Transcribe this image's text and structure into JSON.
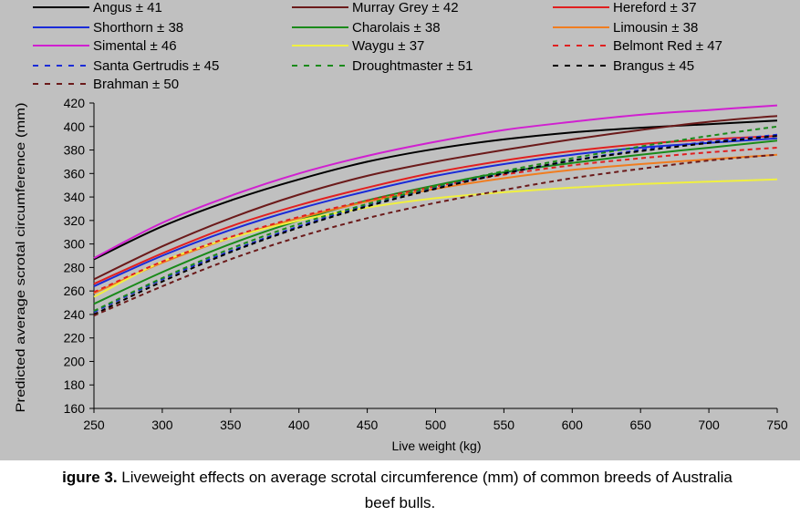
{
  "chart_data": {
    "type": "line",
    "xlabel": "Live weight (kg)",
    "ylabel": "Predicted average scrotal circumference (mm)",
    "xlim": [
      250,
      750
    ],
    "ylim": [
      160,
      420
    ],
    "x_ticks": [
      "250",
      "300",
      "350",
      "400",
      "450",
      "500",
      "550",
      "600",
      "650",
      "700",
      "750"
    ],
    "y_ticks": [
      "160",
      "180",
      "200",
      "220",
      "240",
      "260",
      "280",
      "300",
      "320",
      "340",
      "360",
      "380",
      "400",
      "420"
    ],
    "legend_position": "top",
    "x": [
      250,
      300,
      350,
      400,
      450,
      500,
      550,
      600,
      650,
      700,
      750
    ],
    "series": [
      {
        "name": "Angus ± 41",
        "color": "#000000",
        "dash": "solid",
        "values": [
          287,
          315,
          337,
          355,
          370,
          381,
          389,
          395,
          399,
          402,
          405
        ]
      },
      {
        "name": "Murray Grey ± 42",
        "color": "#6b1a1a",
        "dash": "solid",
        "values": [
          270,
          298,
          322,
          342,
          358,
          370,
          380,
          389,
          397,
          404,
          409
        ]
      },
      {
        "name": "Hereford ± 37",
        "color": "#e02020",
        "dash": "solid",
        "values": [
          266,
          292,
          315,
          333,
          348,
          361,
          371,
          379,
          385,
          389,
          392
        ]
      },
      {
        "name": "Shorthorn ± 38",
        "color": "#1a2bd8",
        "dash": "solid",
        "values": [
          264,
          290,
          312,
          330,
          345,
          358,
          368,
          376,
          382,
          386,
          390
        ]
      },
      {
        "name": "Charolais ± 38",
        "color": "#1a8a1a",
        "dash": "solid",
        "values": [
          249,
          276,
          300,
          320,
          337,
          350,
          361,
          369,
          376,
          382,
          388
        ]
      },
      {
        "name": "Limousin ± 38",
        "color": "#f07d20",
        "dash": "solid",
        "values": [
          258,
          284,
          305,
          322,
          336,
          347,
          356,
          363,
          368,
          372,
          376
        ]
      },
      {
        "name": "Simental ± 46",
        "color": "#d020d0",
        "dash": "solid",
        "values": [
          288,
          318,
          341,
          360,
          375,
          387,
          397,
          404,
          410,
          414,
          418
        ]
      },
      {
        "name": "Waygu ± 37",
        "color": "#f0f040",
        "dash": "solid",
        "values": [
          255,
          285,
          305,
          320,
          331,
          339,
          344,
          348,
          351,
          353,
          355
        ]
      },
      {
        "name": "Belmont Red ± 47",
        "color": "#e02020",
        "dash": "dash",
        "values": [
          259,
          285,
          306,
          323,
          337,
          349,
          359,
          367,
          373,
          378,
          382
        ]
      },
      {
        "name": "Santa Gertrudis ± 45",
        "color": "#1a2bd8",
        "dash": "dash",
        "values": [
          242,
          270,
          294,
          315,
          333,
          348,
          360,
          371,
          380,
          387,
          393
        ]
      },
      {
        "name": "Droughtmaster ± 51",
        "color": "#1a8a1a",
        "dash": "dash",
        "values": [
          243,
          271,
          296,
          317,
          334,
          349,
          362,
          373,
          383,
          392,
          400
        ]
      },
      {
        "name": "Brangus ± 45",
        "color": "#000000",
        "dash": "dash",
        "values": [
          240,
          268,
          293,
          314,
          332,
          347,
          360,
          371,
          379,
          386,
          392
        ]
      },
      {
        "name": "Brahman ± 50",
        "color": "#6b1a1a",
        "dash": "dash",
        "values": [
          239,
          264,
          287,
          306,
          322,
          335,
          346,
          356,
          364,
          371,
          376
        ]
      }
    ]
  },
  "caption": {
    "prefix": "igure 3.",
    "text_line1": " Liveweight effects on average scrotal circumference (mm) of common breeds of Australia",
    "text_line2": "beef bulls."
  }
}
